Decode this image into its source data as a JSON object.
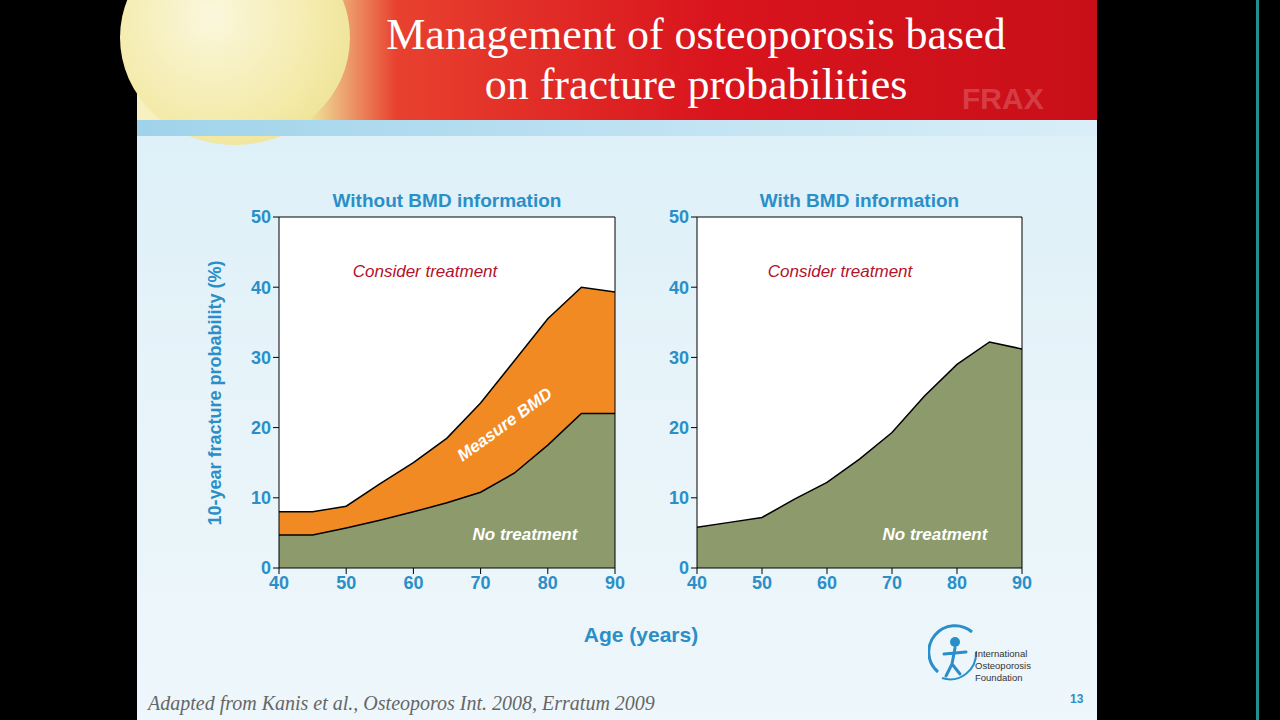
{
  "title": "Management of osteoporosis based on fracture probabilities",
  "watermark": "FRAX",
  "xlabel": "Age (years)",
  "source": "Adapted from Kanis et al., Osteoporos Int. 2008, Erratum 2009",
  "logo": "International Osteoporosis Foundation",
  "page": 13,
  "chart_data": [
    {
      "type": "area",
      "title": "Without BMD information",
      "ylabel": "10-year fracture probability (%)",
      "annotations": [
        "Consider treatment"
      ],
      "x": [
        40,
        45,
        50,
        55,
        60,
        65,
        70,
        75,
        80,
        85,
        90
      ],
      "series": [
        {
          "name": "Measure BMD",
          "color": "#f28a24",
          "values": [
            8,
            8,
            8.8,
            12,
            15,
            18.5,
            23.5,
            29.5,
            35.5,
            40,
            39.3
          ]
        },
        {
          "name": "No treatment",
          "color": "#8c9a6c",
          "values": [
            4.7,
            4.7,
            5.7,
            6.8,
            8,
            9.3,
            10.8,
            13.5,
            17.5,
            22,
            22
          ]
        }
      ],
      "xlim": [
        40,
        90
      ],
      "xticks": [
        40,
        50,
        60,
        70,
        80,
        90
      ],
      "ylim": [
        0,
        50
      ],
      "yticks": [
        0,
        10,
        20,
        30,
        40,
        50
      ],
      "grid": false
    },
    {
      "type": "area",
      "title": "With BMD information",
      "annotations": [
        "Consider treatment"
      ],
      "x": [
        40,
        45,
        50,
        55,
        60,
        65,
        70,
        75,
        80,
        85,
        90
      ],
      "series": [
        {
          "name": "No treatment",
          "color": "#8c9a6c",
          "values": [
            5.8,
            6.5,
            7.2,
            9.8,
            12.2,
            15.5,
            19.3,
            24.5,
            29,
            32.2,
            31.2
          ]
        }
      ],
      "xlim": [
        40,
        90
      ],
      "xticks": [
        40,
        50,
        60,
        70,
        80,
        90
      ],
      "ylim": [
        0,
        50
      ],
      "yticks": [
        0,
        10,
        20,
        30,
        40,
        50
      ],
      "grid": false
    }
  ]
}
